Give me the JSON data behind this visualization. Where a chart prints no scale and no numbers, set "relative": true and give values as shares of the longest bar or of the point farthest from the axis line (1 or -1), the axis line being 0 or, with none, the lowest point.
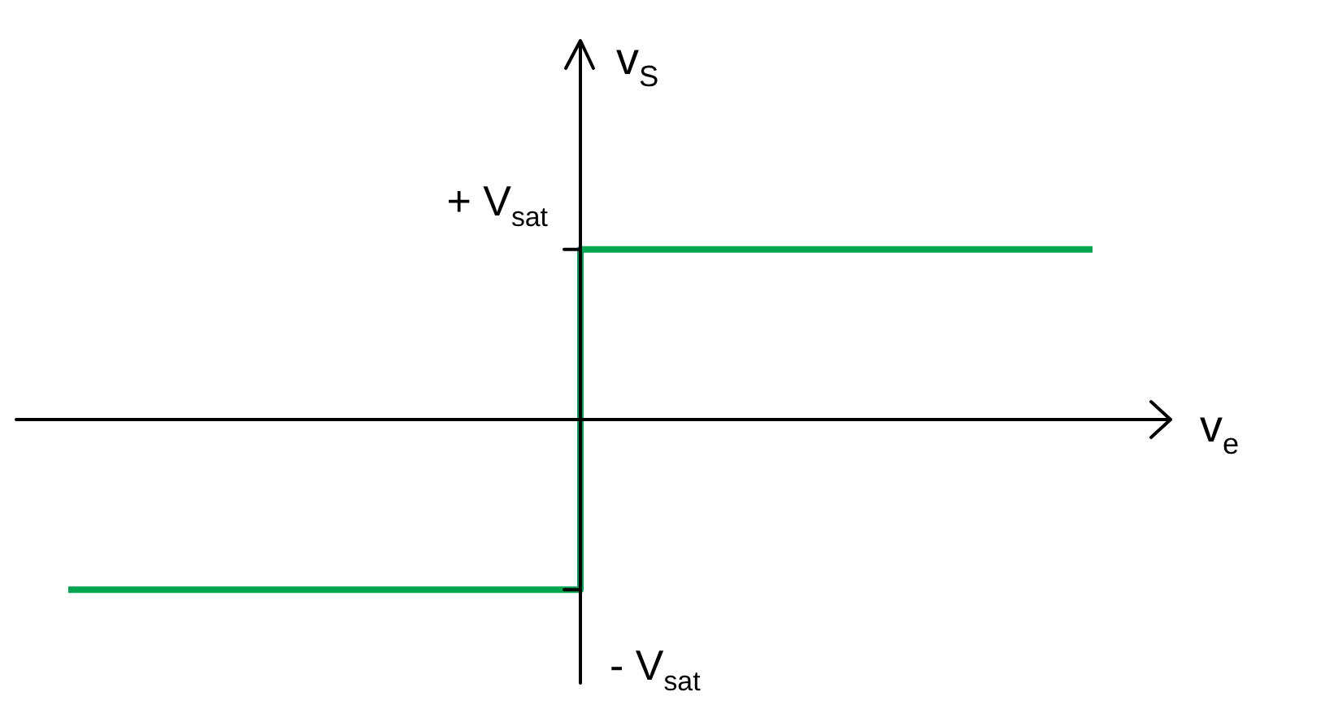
{
  "chart_data": {
    "type": "step",
    "xlabel": "v$_{e}$",
    "ylabel": "v$_{S}$",
    "relative": true,
    "categories": [
      null,
      null,
      null
    ],
    "series": [
      {
        "color": "#00a651",
        "values": [
          -1,
          1,
          1
        ]
      }
    ],
    "annotations": [
      "+ V$_{sat}$",
      "- V$_{sat}$"
    ],
    "legend": false,
    "marker": "none",
    "line_style": "solid"
  }
}
